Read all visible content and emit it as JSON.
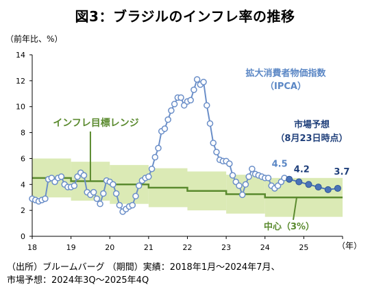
{
  "title": "図3：ブラジルのインフレ率の推移",
  "source": {
    "line1": "（出所）ブルームバーグ （期間）実績：2018年1月～2024年7月、",
    "line2": "市場予想：2024年3Q～2025年4Q"
  },
  "colors": {
    "actual_line": "#6a8ec8",
    "actual_marker_fill": "#ffffff",
    "forecast": "#4a73b8",
    "forecast_label": "#1f3f7a",
    "band_fill": "#dbeab5",
    "center_line": "#5a8a2e",
    "target_label": "#5a8a2e",
    "ipca_label": "#5b87c5",
    "axis": "#000000"
  },
  "chart_data": {
    "type": "line",
    "ylabel": "（前年比、%）",
    "xlabel": "（年）",
    "ylim": [
      0,
      14
    ],
    "yticks": [
      0,
      2,
      4,
      6,
      8,
      10,
      12,
      14
    ],
    "xlim": [
      2018,
      2026
    ],
    "xtick_labels": [
      "18",
      "19",
      "20",
      "21",
      "22",
      "23",
      "24",
      "25"
    ],
    "grid": false,
    "series": [
      {
        "name": "拡大消費者物価指数（IPCA）",
        "kind": "actual_monthly",
        "start": "2018-01",
        "values": [
          2.9,
          2.8,
          2.7,
          2.8,
          2.9,
          4.4,
          4.5,
          4.2,
          4.5,
          4.6,
          4.0,
          3.8,
          3.8,
          3.9,
          4.6,
          4.9,
          4.7,
          3.4,
          3.2,
          3.4,
          2.9,
          2.5,
          3.3,
          4.3,
          4.2,
          4.0,
          3.3,
          2.4,
          1.9,
          2.1,
          2.3,
          2.4,
          3.1,
          3.9,
          4.3,
          4.5,
          4.6,
          5.2,
          6.1,
          6.8,
          8.1,
          8.3,
          9.0,
          9.7,
          10.2,
          10.7,
          10.7,
          10.1,
          10.4,
          10.5,
          11.3,
          12.1,
          11.7,
          11.9,
          10.1,
          8.7,
          7.2,
          6.5,
          5.9,
          5.8,
          5.8,
          5.6,
          4.7,
          4.2,
          3.9,
          3.2,
          4.0,
          4.6,
          5.2,
          4.8,
          4.7,
          4.6,
          4.5,
          4.5,
          3.9,
          3.7,
          3.9,
          4.2,
          4.5
        ]
      },
      {
        "name": "市場予想（8月23日時点）",
        "kind": "forecast_quarterly",
        "x": [
          "2024Q3",
          "2024Q4",
          "2025Q1",
          "2025Q2",
          "2025Q3",
          "2025Q4"
        ],
        "values": [
          4.4,
          4.2,
          4.0,
          3.8,
          3.6,
          3.7
        ]
      },
      {
        "name": "中心（3%）",
        "kind": "inflation_target_center",
        "segments": [
          {
            "from": 2018,
            "to": 2019,
            "value": 4.5
          },
          {
            "from": 2019,
            "to": 2020,
            "value": 4.25
          },
          {
            "from": 2020,
            "to": 2021,
            "value": 4.0
          },
          {
            "from": 2021,
            "to": 2022,
            "value": 3.75
          },
          {
            "from": 2022,
            "to": 2023,
            "value": 3.5
          },
          {
            "from": 2023,
            "to": 2024,
            "value": 3.25
          },
          {
            "from": 2024,
            "to": 2026,
            "value": 3.0
          }
        ],
        "band_halfwidth": [
          1.5,
          1.5,
          1.5,
          1.5,
          1.5,
          1.5,
          1.5
        ]
      }
    ],
    "annotations": {
      "ipca_label_line1": "拡大消費者物価指数",
      "ipca_label_line2": "（IPCA）",
      "target_range_label": "インフレ目標レンジ",
      "forecast_label_line1": "市場予想",
      "forecast_label_line2": "（8月23日時点）",
      "center_label": "中心（3%）",
      "value_labels": [
        "4.5",
        "4.2",
        "3.7"
      ]
    }
  }
}
